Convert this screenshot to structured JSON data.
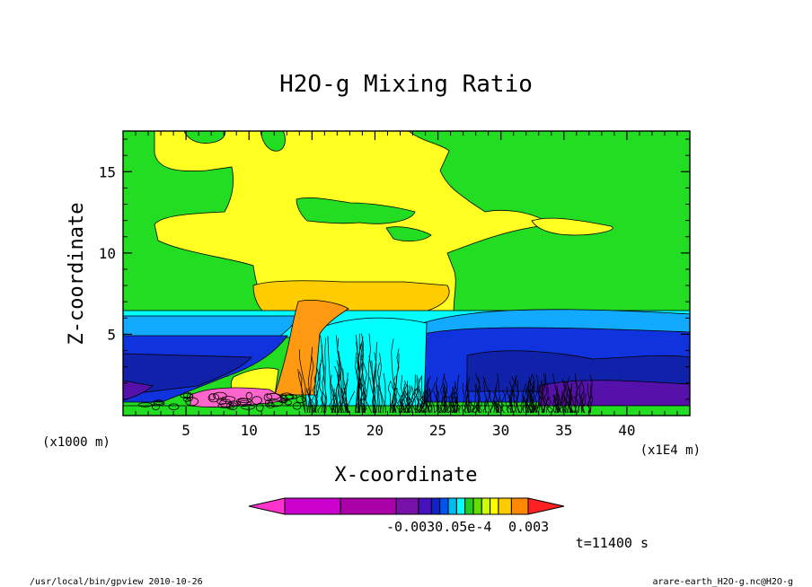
{
  "chart_data": {
    "type": "heatmap",
    "title": "H2O-g Mixing Ratio",
    "xlabel": "X-coordinate",
    "ylabel": "Z-coordinate",
    "x_unit_left": "(x1000 m)",
    "x_unit_right": "(x1E4 m)",
    "xlim": [
      0,
      45
    ],
    "ylim": [
      0,
      17.5
    ],
    "x_ticks": [
      5,
      10,
      15,
      20,
      25,
      30,
      35,
      40
    ],
    "y_ticks": [
      5,
      10,
      15
    ],
    "colorbar": {
      "labels": [
        "-0.003",
        "0.003"
      ],
      "overlap_label": "-0.0030.05e-4",
      "colors": [
        "#cc00cc",
        "#aa00aa",
        "#7711aa",
        "#4411bb",
        "#1122cc",
        "#0055ee",
        "#00bbee",
        "#00ffff",
        "#22cc22",
        "#66dd00",
        "#ccff00",
        "#ffff00",
        "#ffcc00",
        "#ff8800",
        "#ff2222"
      ]
    },
    "time_label": "t=11400 s"
  },
  "footer": {
    "left": "/usr/local/bin/gpview  2010-10-26",
    "right": "arare-earth_H2O-g.nc@H2O-g"
  },
  "colors": {
    "green": "#22dd22",
    "yellow": "#ffff22",
    "gold": "#ffcc00",
    "orange": "#ff9911",
    "cyan": "#00ffff",
    "skyblue": "#11aaff",
    "blue": "#1133dd",
    "navy": "#1122aa",
    "purple": "#5511aa",
    "pink": "#ff66cc"
  }
}
